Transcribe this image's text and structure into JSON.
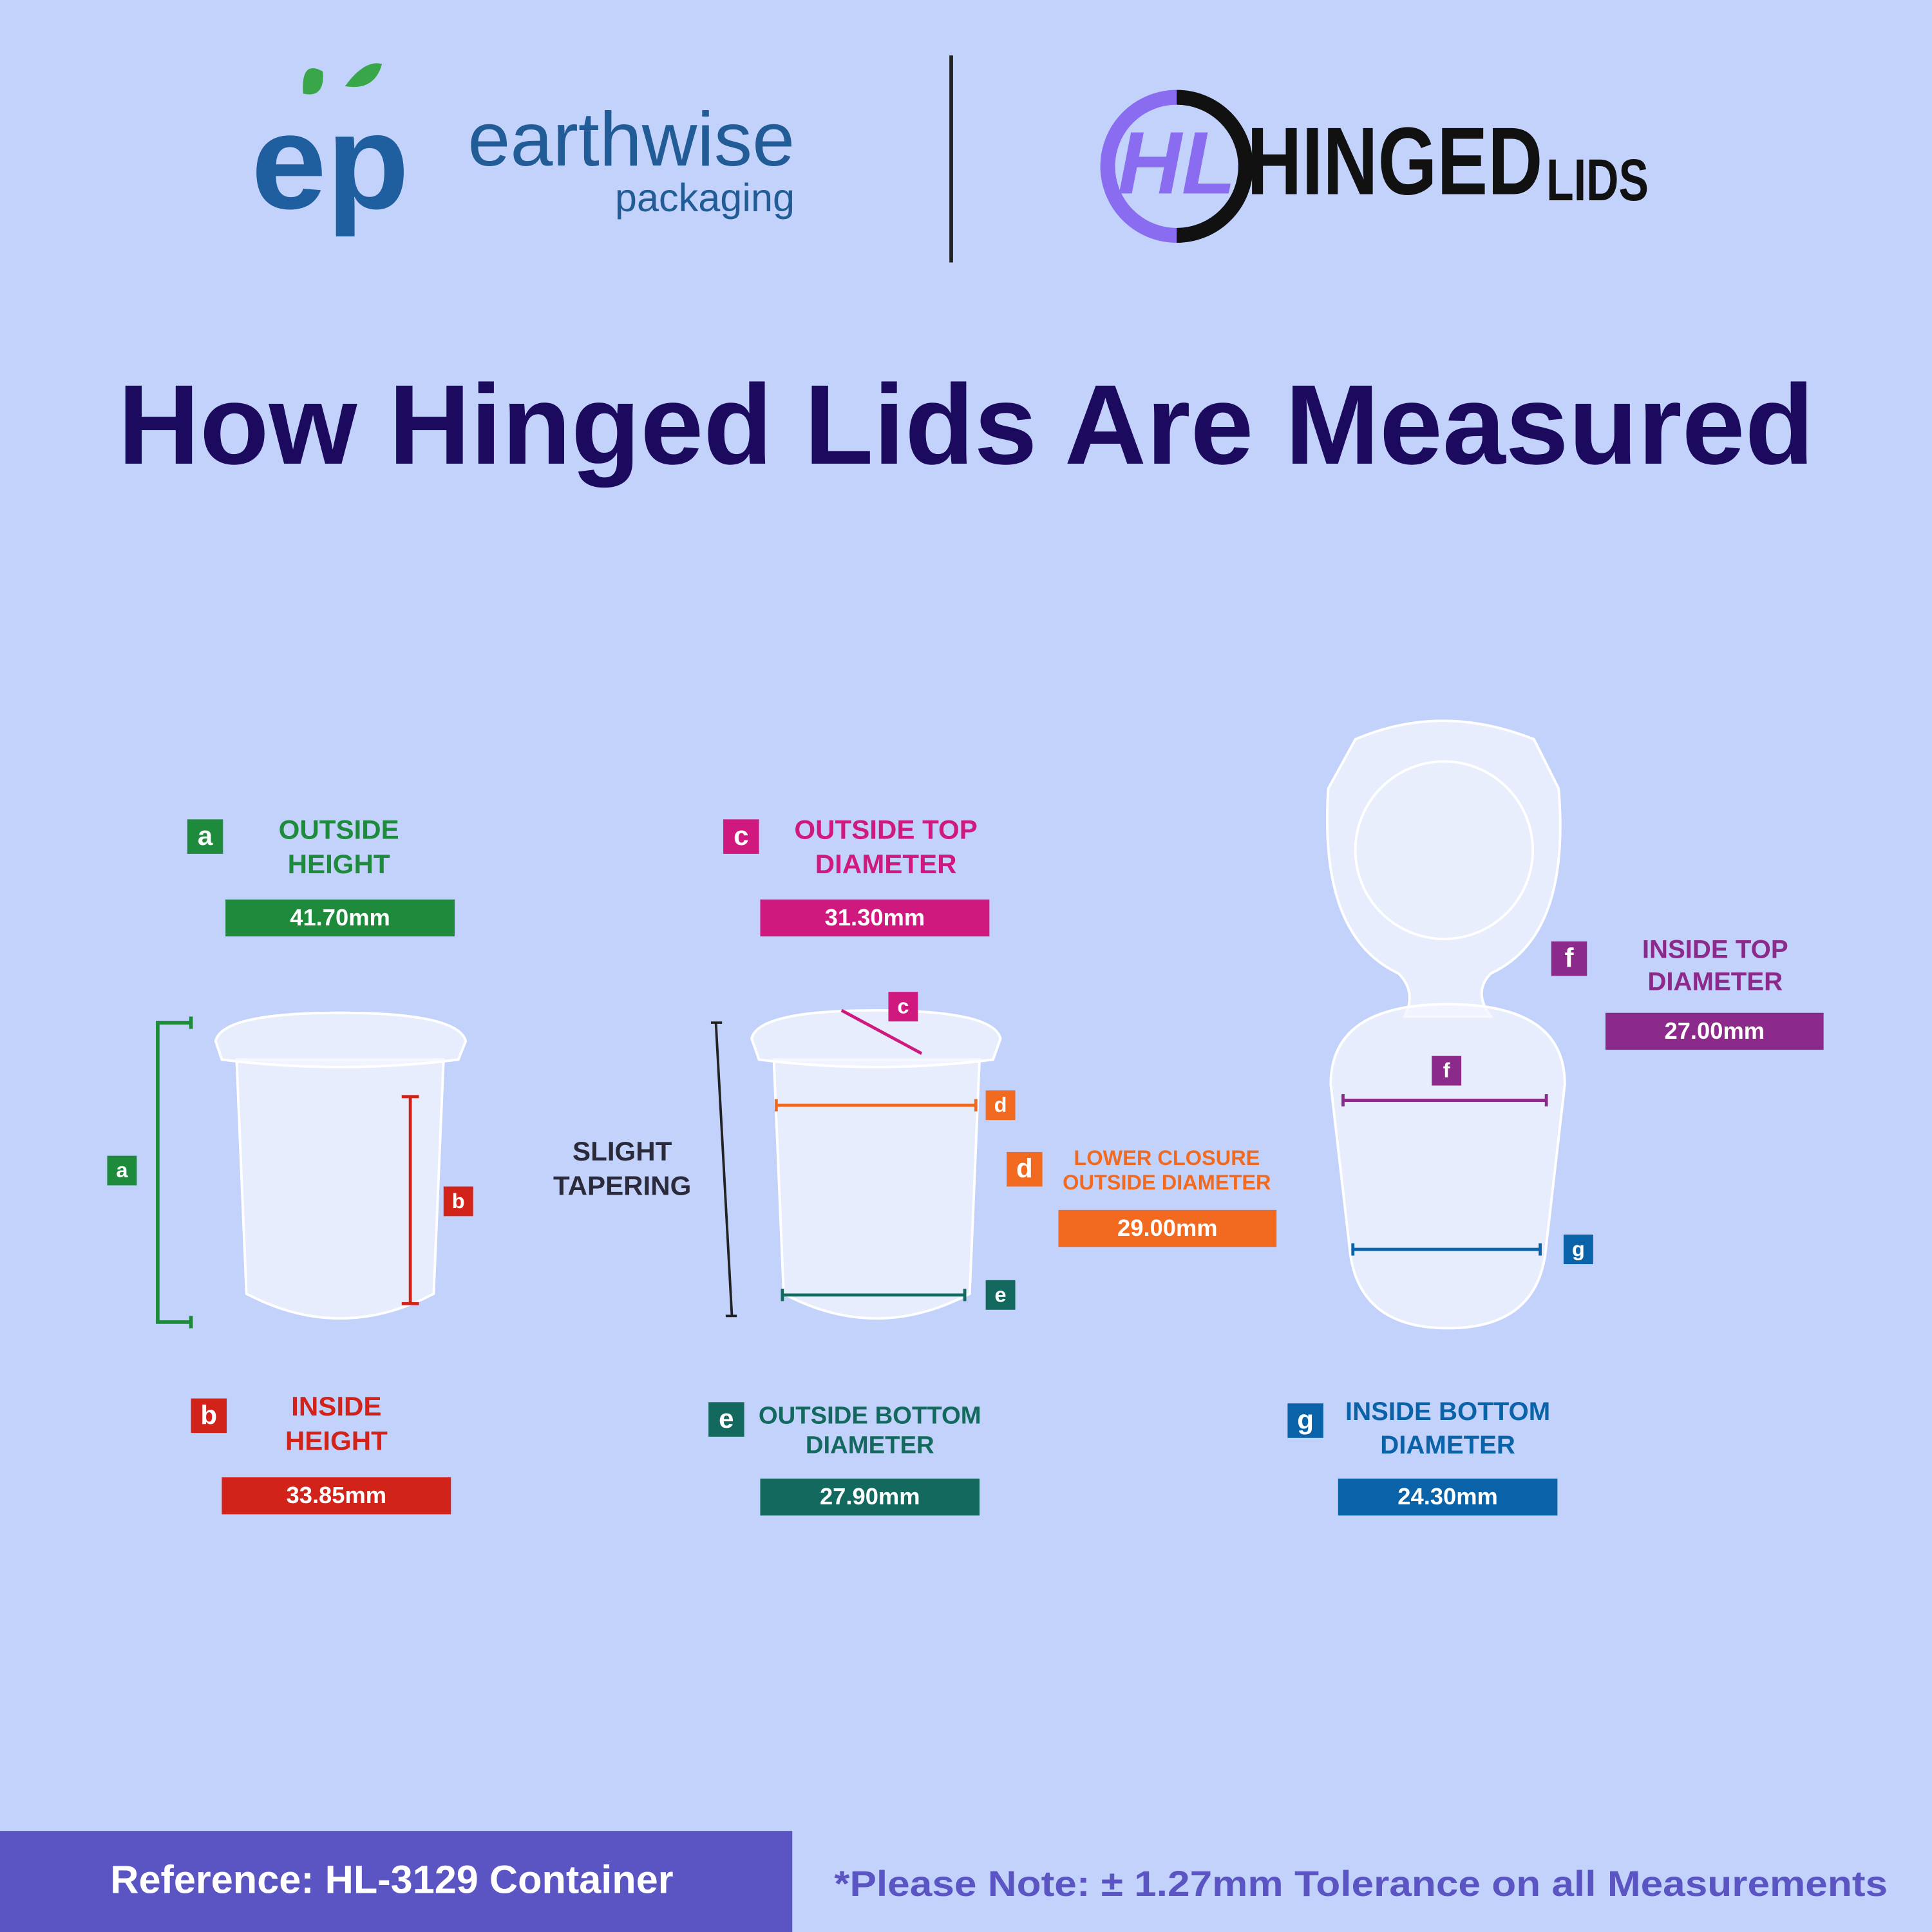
{
  "logos": {
    "earthwise": {
      "mark": "ep",
      "name": "earthwise",
      "tagline": "packaging"
    },
    "hinged_lids": {
      "mark": "HL",
      "name": "HINGED",
      "suffix": "LIDS"
    }
  },
  "title": "How Hinged Lids Are Measured",
  "measurements": [
    {
      "letter": "a",
      "label": [
        "OUTSIDE",
        "HEIGHT"
      ],
      "value": "41.70mm",
      "color": "#1e8a3c"
    },
    {
      "letter": "c",
      "label": [
        "OUTSIDE TOP",
        "DIAMETER"
      ],
      "value": "31.30mm",
      "color": "#d0197f"
    },
    {
      "letter": "f",
      "label": [
        "INSIDE TOP",
        "DIAMETER"
      ],
      "value": "27.00mm",
      "color": "#8c2a8c"
    },
    {
      "letter": "d",
      "label": [
        "LOWER CLOSURE",
        "OUTSIDE DIAMETER"
      ],
      "value": "29.00mm",
      "color": "#f26a1f"
    },
    {
      "letter": "b",
      "label": [
        "INSIDE",
        "HEIGHT"
      ],
      "value": "33.85mm",
      "color": "#d2231a"
    },
    {
      "letter": "e",
      "label": [
        "OUTSIDE BOTTOM",
        "DIAMETER"
      ],
      "value": "27.90mm",
      "color": "#14695f"
    },
    {
      "letter": "g",
      "label": [
        "INSIDE BOTTOM",
        "DIAMETER"
      ],
      "value": "24.30mm",
      "color": "#0a63a8"
    }
  ],
  "diagram_markers": [
    "a",
    "b",
    "c",
    "d",
    "e",
    "f",
    "g"
  ],
  "tapering_note": [
    "SLIGHT",
    "TAPERING"
  ],
  "footer": {
    "reference": "Reference: HL-3129 Container",
    "note": "*Please Note: ± 1.27mm Tolerance on all Measurements"
  }
}
